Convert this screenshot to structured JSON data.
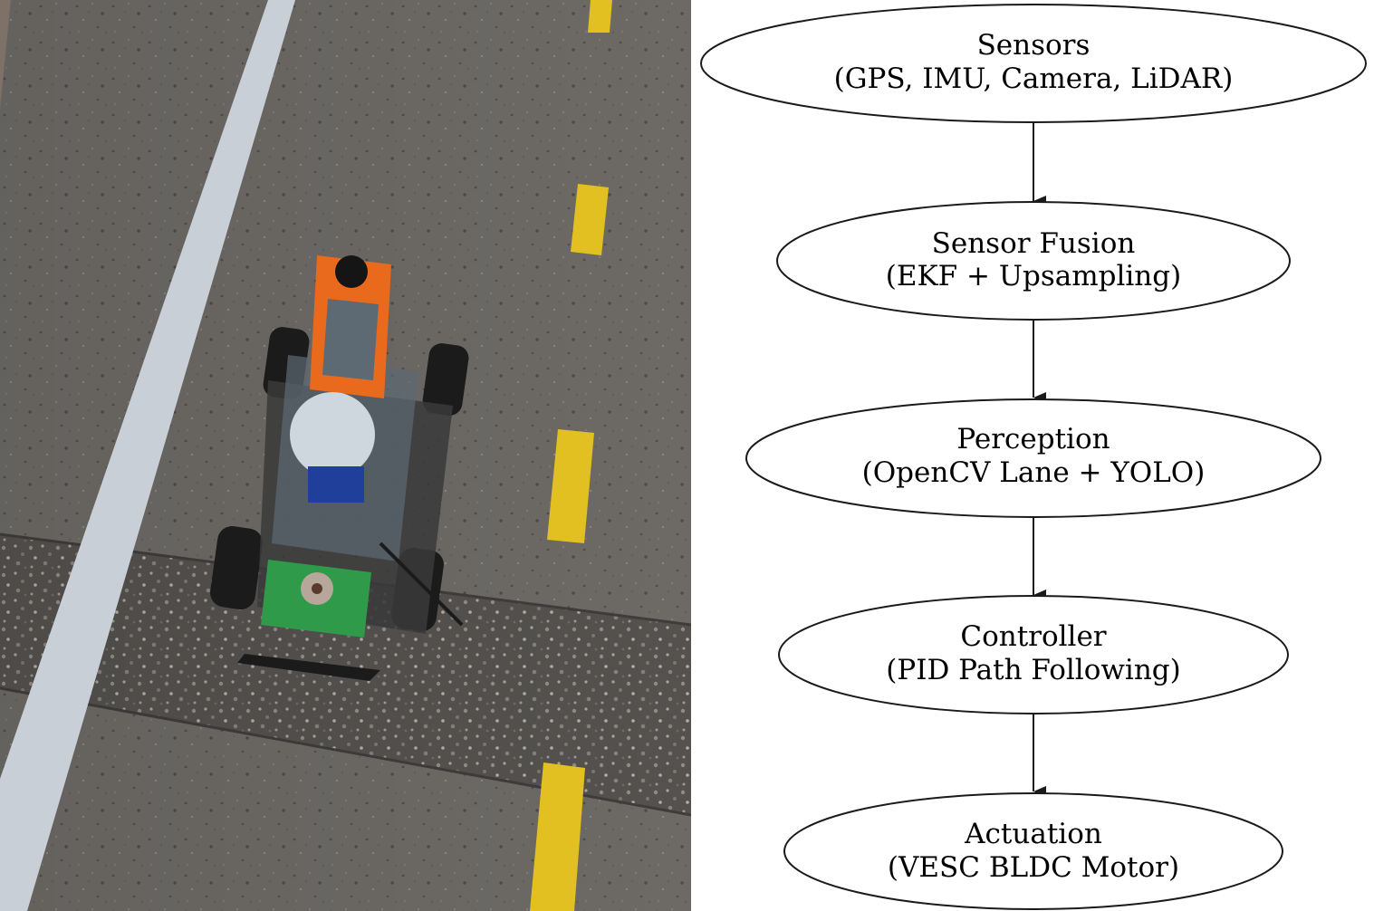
{
  "photo": {
    "subject": "rc-car-on-road"
  },
  "diagram": {
    "nodes": [
      {
        "id": "sensors",
        "title": "Sensors",
        "subtitle": "(GPS, IMU, Camera, LiDAR)"
      },
      {
        "id": "fusion",
        "title": "Sensor Fusion",
        "subtitle": "(EKF + Upsampling)"
      },
      {
        "id": "perception",
        "title": "Perception",
        "subtitle": "(OpenCV Lane + YOLO)"
      },
      {
        "id": "controller",
        "title": "Controller",
        "subtitle": "(PID Path Following)"
      },
      {
        "id": "actuation",
        "title": "Actuation",
        "subtitle": "(VESC BLDC Motor)"
      }
    ],
    "edges": [
      {
        "from": "sensors",
        "to": "fusion"
      },
      {
        "from": "fusion",
        "to": "perception"
      },
      {
        "from": "perception",
        "to": "controller"
      },
      {
        "from": "controller",
        "to": "actuation"
      }
    ],
    "colors": {
      "stroke": "#1a1a1a",
      "fill": "#ffffff",
      "text": "#000000"
    }
  }
}
